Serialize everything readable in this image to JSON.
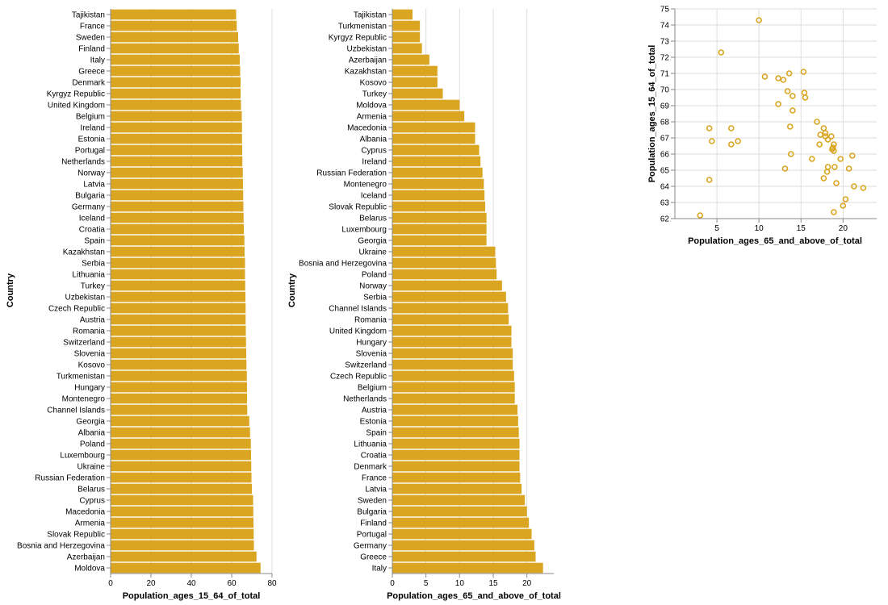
{
  "colors": {
    "mark": "#DAA520",
    "grid": "#dddddd",
    "axis": "#888888"
  },
  "chart_data": [
    {
      "type": "bar",
      "orientation": "horizontal",
      "xlabel": "Population_ages_15_64_of_total",
      "ylabel": "Country",
      "xlim": [
        0,
        80
      ],
      "xticks": [
        0,
        20,
        40,
        60,
        80
      ],
      "grid": true,
      "categories": [
        "Tajikistan",
        "France",
        "Sweden",
        "Finland",
        "Italy",
        "Greece",
        "Denmark",
        "Kyrgyz Republic",
        "United Kingdom",
        "Belgium",
        "Ireland",
        "Estonia",
        "Portugal",
        "Netherlands",
        "Norway",
        "Latvia",
        "Bulgaria",
        "Germany",
        "Iceland",
        "Croatia",
        "Spain",
        "Kazakhstan",
        "Serbia",
        "Lithuania",
        "Turkey",
        "Uzbekistan",
        "Czech Republic",
        "Austria",
        "Romania",
        "Switzerland",
        "Slovenia",
        "Kosovo",
        "Turkmenistan",
        "Hungary",
        "Montenegro",
        "Channel Islands",
        "Georgia",
        "Albania",
        "Poland",
        "Luxembourg",
        "Ukraine",
        "Russian Federation",
        "Belarus",
        "Cyprus",
        "Macedonia",
        "Armenia",
        "Slovak Republic",
        "Bosnia and Herzegovina",
        "Azerbaijan",
        "Moldova"
      ],
      "values": [
        62.2,
        62.5,
        63.2,
        63.5,
        64.0,
        64.2,
        64.4,
        64.4,
        64.6,
        65.0,
        65.1,
        65.1,
        65.2,
        65.3,
        65.5,
        65.6,
        65.7,
        65.8,
        65.9,
        66.0,
        66.3,
        66.4,
        66.6,
        66.6,
        66.7,
        66.8,
        66.9,
        66.9,
        67.0,
        67.1,
        67.2,
        67.3,
        67.5,
        67.6,
        67.6,
        67.7,
        68.7,
        69.1,
        69.5,
        69.6,
        69.7,
        69.8,
        70.0,
        70.6,
        70.7,
        70.8,
        70.9,
        71.0,
        72.3,
        74.3
      ]
    },
    {
      "type": "bar",
      "orientation": "horizontal",
      "xlabel": "Population_ages_65_and_above_of_total",
      "ylabel": "Country",
      "xlim": [
        0,
        24
      ],
      "xticks": [
        0,
        5,
        10,
        15,
        20
      ],
      "grid": true,
      "categories": [
        "Tajikistan",
        "Turkmenistan",
        "Kyrgyz Republic",
        "Uzbekistan",
        "Azerbaijan",
        "Kazakhstan",
        "Kosovo",
        "Turkey",
        "Moldova",
        "Armenia",
        "Macedonia",
        "Albania",
        "Cyprus",
        "Ireland",
        "Russian Federation",
        "Montenegro",
        "Iceland",
        "Slovak Republic",
        "Belarus",
        "Luxembourg",
        "Georgia",
        "Ukraine",
        "Bosnia and Herzegovina",
        "Poland",
        "Norway",
        "Serbia",
        "Channel Islands",
        "Romania",
        "United Kingdom",
        "Hungary",
        "Slovenia",
        "Switzerland",
        "Czech Republic",
        "Belgium",
        "Netherlands",
        "Austria",
        "Estonia",
        "Spain",
        "Lithuania",
        "Croatia",
        "Denmark",
        "France",
        "Latvia",
        "Sweden",
        "Bulgaria",
        "Finland",
        "Portugal",
        "Germany",
        "Greece",
        "Italy"
      ],
      "values": [
        3.0,
        4.1,
        4.1,
        4.4,
        5.5,
        6.7,
        6.7,
        7.5,
        10.0,
        10.7,
        12.3,
        12.3,
        12.9,
        13.1,
        13.4,
        13.6,
        13.7,
        13.8,
        14.0,
        14.0,
        14.0,
        15.3,
        15.4,
        15.5,
        16.3,
        16.9,
        17.2,
        17.3,
        17.7,
        17.7,
        17.9,
        17.9,
        18.1,
        18.2,
        18.2,
        18.6,
        18.7,
        18.8,
        18.9,
        18.9,
        18.9,
        19.0,
        19.2,
        19.7,
        20.0,
        20.3,
        20.7,
        21.1,
        21.3,
        22.4
      ]
    },
    {
      "type": "scatter",
      "xlabel": "Population_ages_65_and_above_of_total",
      "ylabel": "Population_ages_15_64_of_total",
      "xlim": [
        0,
        24
      ],
      "ylim": [
        62,
        75
      ],
      "xticks": [
        5,
        10,
        15,
        20
      ],
      "yticks": [
        62,
        63,
        64,
        65,
        66,
        67,
        68,
        69,
        70,
        71,
        72,
        73,
        74,
        75
      ],
      "grid": true,
      "x": [
        3.0,
        5.5,
        10.0,
        10.7,
        12.3,
        12.3,
        12.9,
        13.4,
        13.6,
        14.0,
        14.0,
        4.1,
        4.4,
        6.7,
        6.7,
        7.5,
        4.1,
        13.1,
        13.7,
        13.8,
        15.3,
        15.4,
        15.5,
        16.3,
        16.9,
        17.2,
        17.3,
        17.7,
        17.7,
        17.9,
        17.9,
        18.1,
        18.2,
        18.2,
        18.6,
        18.7,
        18.8,
        18.9,
        18.9,
        18.9,
        19.0,
        19.2,
        19.7,
        20.0,
        20.3,
        20.7,
        21.1,
        21.3,
        22.4
      ],
      "y": [
        62.2,
        72.3,
        74.3,
        70.8,
        70.7,
        69.1,
        70.6,
        69.9,
        71.0,
        69.6,
        68.7,
        67.6,
        66.8,
        67.6,
        66.6,
        66.8,
        64.4,
        65.1,
        67.7,
        66.0,
        71.1,
        69.8,
        69.5,
        65.7,
        68.0,
        66.6,
        67.2,
        67.6,
        64.5,
        67.3,
        67.1,
        64.9,
        65.2,
        66.9,
        67.1,
        66.3,
        66.4,
        66.6,
        66.2,
        62.4,
        65.2,
        64.2,
        65.7,
        62.8,
        63.2,
        65.1,
        65.9,
        64.0,
        63.9
      ]
    }
  ]
}
